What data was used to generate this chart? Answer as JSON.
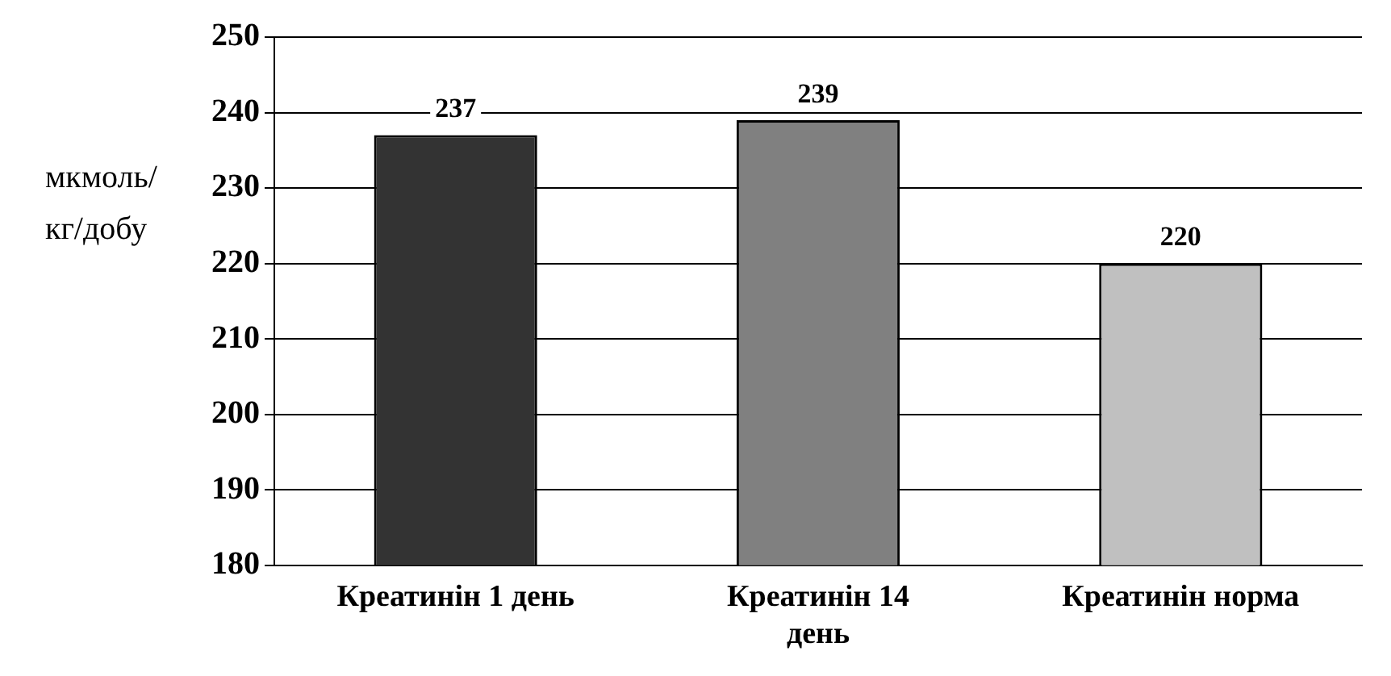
{
  "chart_data": {
    "type": "bar",
    "ylabel": "мкмоль/ кг/добу",
    "categories": [
      "Креатинін 1 день",
      "Креатинін 14 день",
      "Креатинін норма"
    ],
    "values": [
      237,
      239,
      220
    ],
    "colors": [
      "#333333",
      "#808080",
      "#c0c0c0"
    ],
    "ylim": [
      180,
      250
    ],
    "yticks": [
      180,
      190,
      200,
      210,
      220,
      230,
      240,
      250
    ],
    "grid": "y",
    "data_labels": true,
    "legend": false
  }
}
